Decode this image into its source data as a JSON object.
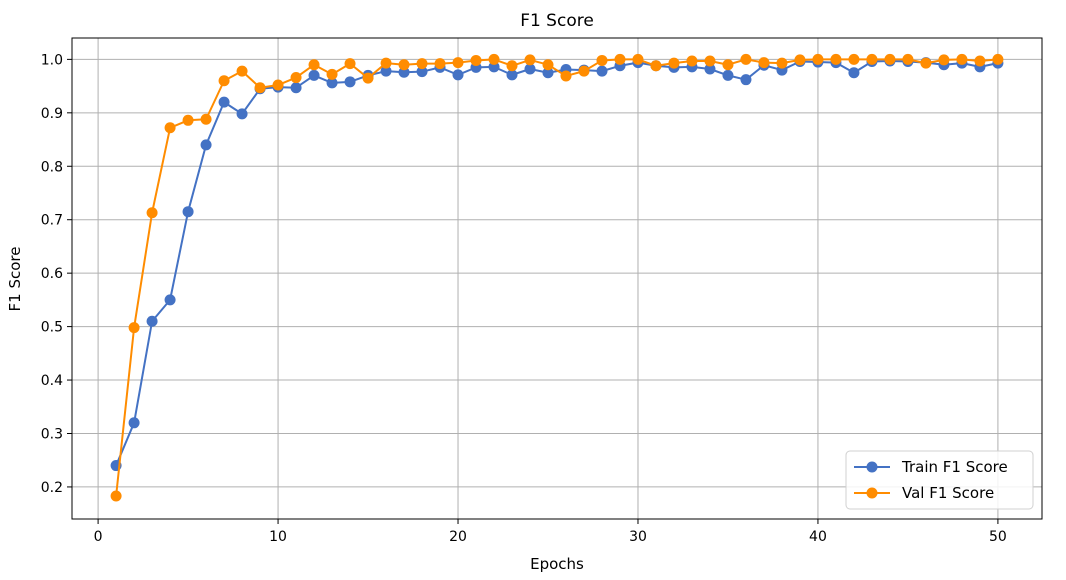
{
  "chart_data": {
    "type": "line",
    "title": "F1 Score",
    "xlabel": "Epochs",
    "ylabel": "F1 Score",
    "xlim": [
      -1.45,
      52.45
    ],
    "ylim": [
      0.14,
      1.04
    ],
    "xticks": [
      0,
      10,
      20,
      30,
      40,
      50
    ],
    "yticks": [
      0.2,
      0.3,
      0.4,
      0.5,
      0.6,
      0.7,
      0.8,
      0.9,
      1.0
    ],
    "ytick_labels": [
      "0.2",
      "0.3",
      "0.4",
      "0.5",
      "0.6",
      "0.7",
      "0.8",
      "0.9",
      "1.0"
    ],
    "grid": true,
    "legend_position": "bottom-right",
    "x": [
      1,
      2,
      3,
      4,
      5,
      6,
      7,
      8,
      9,
      10,
      11,
      12,
      13,
      14,
      15,
      16,
      17,
      18,
      19,
      20,
      21,
      22,
      23,
      24,
      25,
      26,
      27,
      28,
      29,
      30,
      31,
      32,
      33,
      34,
      35,
      36,
      37,
      38,
      39,
      40,
      41,
      42,
      43,
      44,
      45,
      46,
      47,
      48,
      49,
      50
    ],
    "series": [
      {
        "name": "Train F1 Score",
        "color": "#4472c4",
        "values": [
          0.24,
          0.32,
          0.51,
          0.55,
          0.715,
          0.84,
          0.92,
          0.898,
          0.945,
          0.948,
          0.947,
          0.97,
          0.956,
          0.958,
          0.97,
          0.978,
          0.976,
          0.977,
          0.985,
          0.971,
          0.985,
          0.986,
          0.971,
          0.982,
          0.975,
          0.981,
          0.98,
          0.978,
          0.988,
          0.994,
          0.988,
          0.985,
          0.986,
          0.982,
          0.97,
          0.962,
          0.989,
          0.98,
          0.996,
          0.995,
          0.994,
          0.975,
          0.996,
          0.997,
          0.996,
          0.994,
          0.99,
          0.993,
          0.986,
          0.993
        ]
      },
      {
        "name": "Val F1 Score",
        "color": "#ff8c00",
        "values": [
          0.183,
          0.498,
          0.713,
          0.872,
          0.886,
          0.888,
          0.96,
          0.978,
          0.947,
          0.952,
          0.966,
          0.99,
          0.972,
          0.992,
          0.965,
          0.993,
          0.99,
          0.992,
          0.992,
          0.994,
          0.998,
          1.0,
          0.988,
          0.999,
          0.99,
          0.969,
          0.978,
          0.998,
          1.0,
          1.0,
          0.988,
          0.993,
          0.997,
          0.997,
          0.99,
          1.0,
          0.994,
          0.993,
          0.999,
          1.0,
          1.0,
          1.0,
          1.0,
          1.0,
          1.0,
          0.993,
          0.999,
          1.0,
          0.997,
          1.0
        ]
      }
    ]
  }
}
